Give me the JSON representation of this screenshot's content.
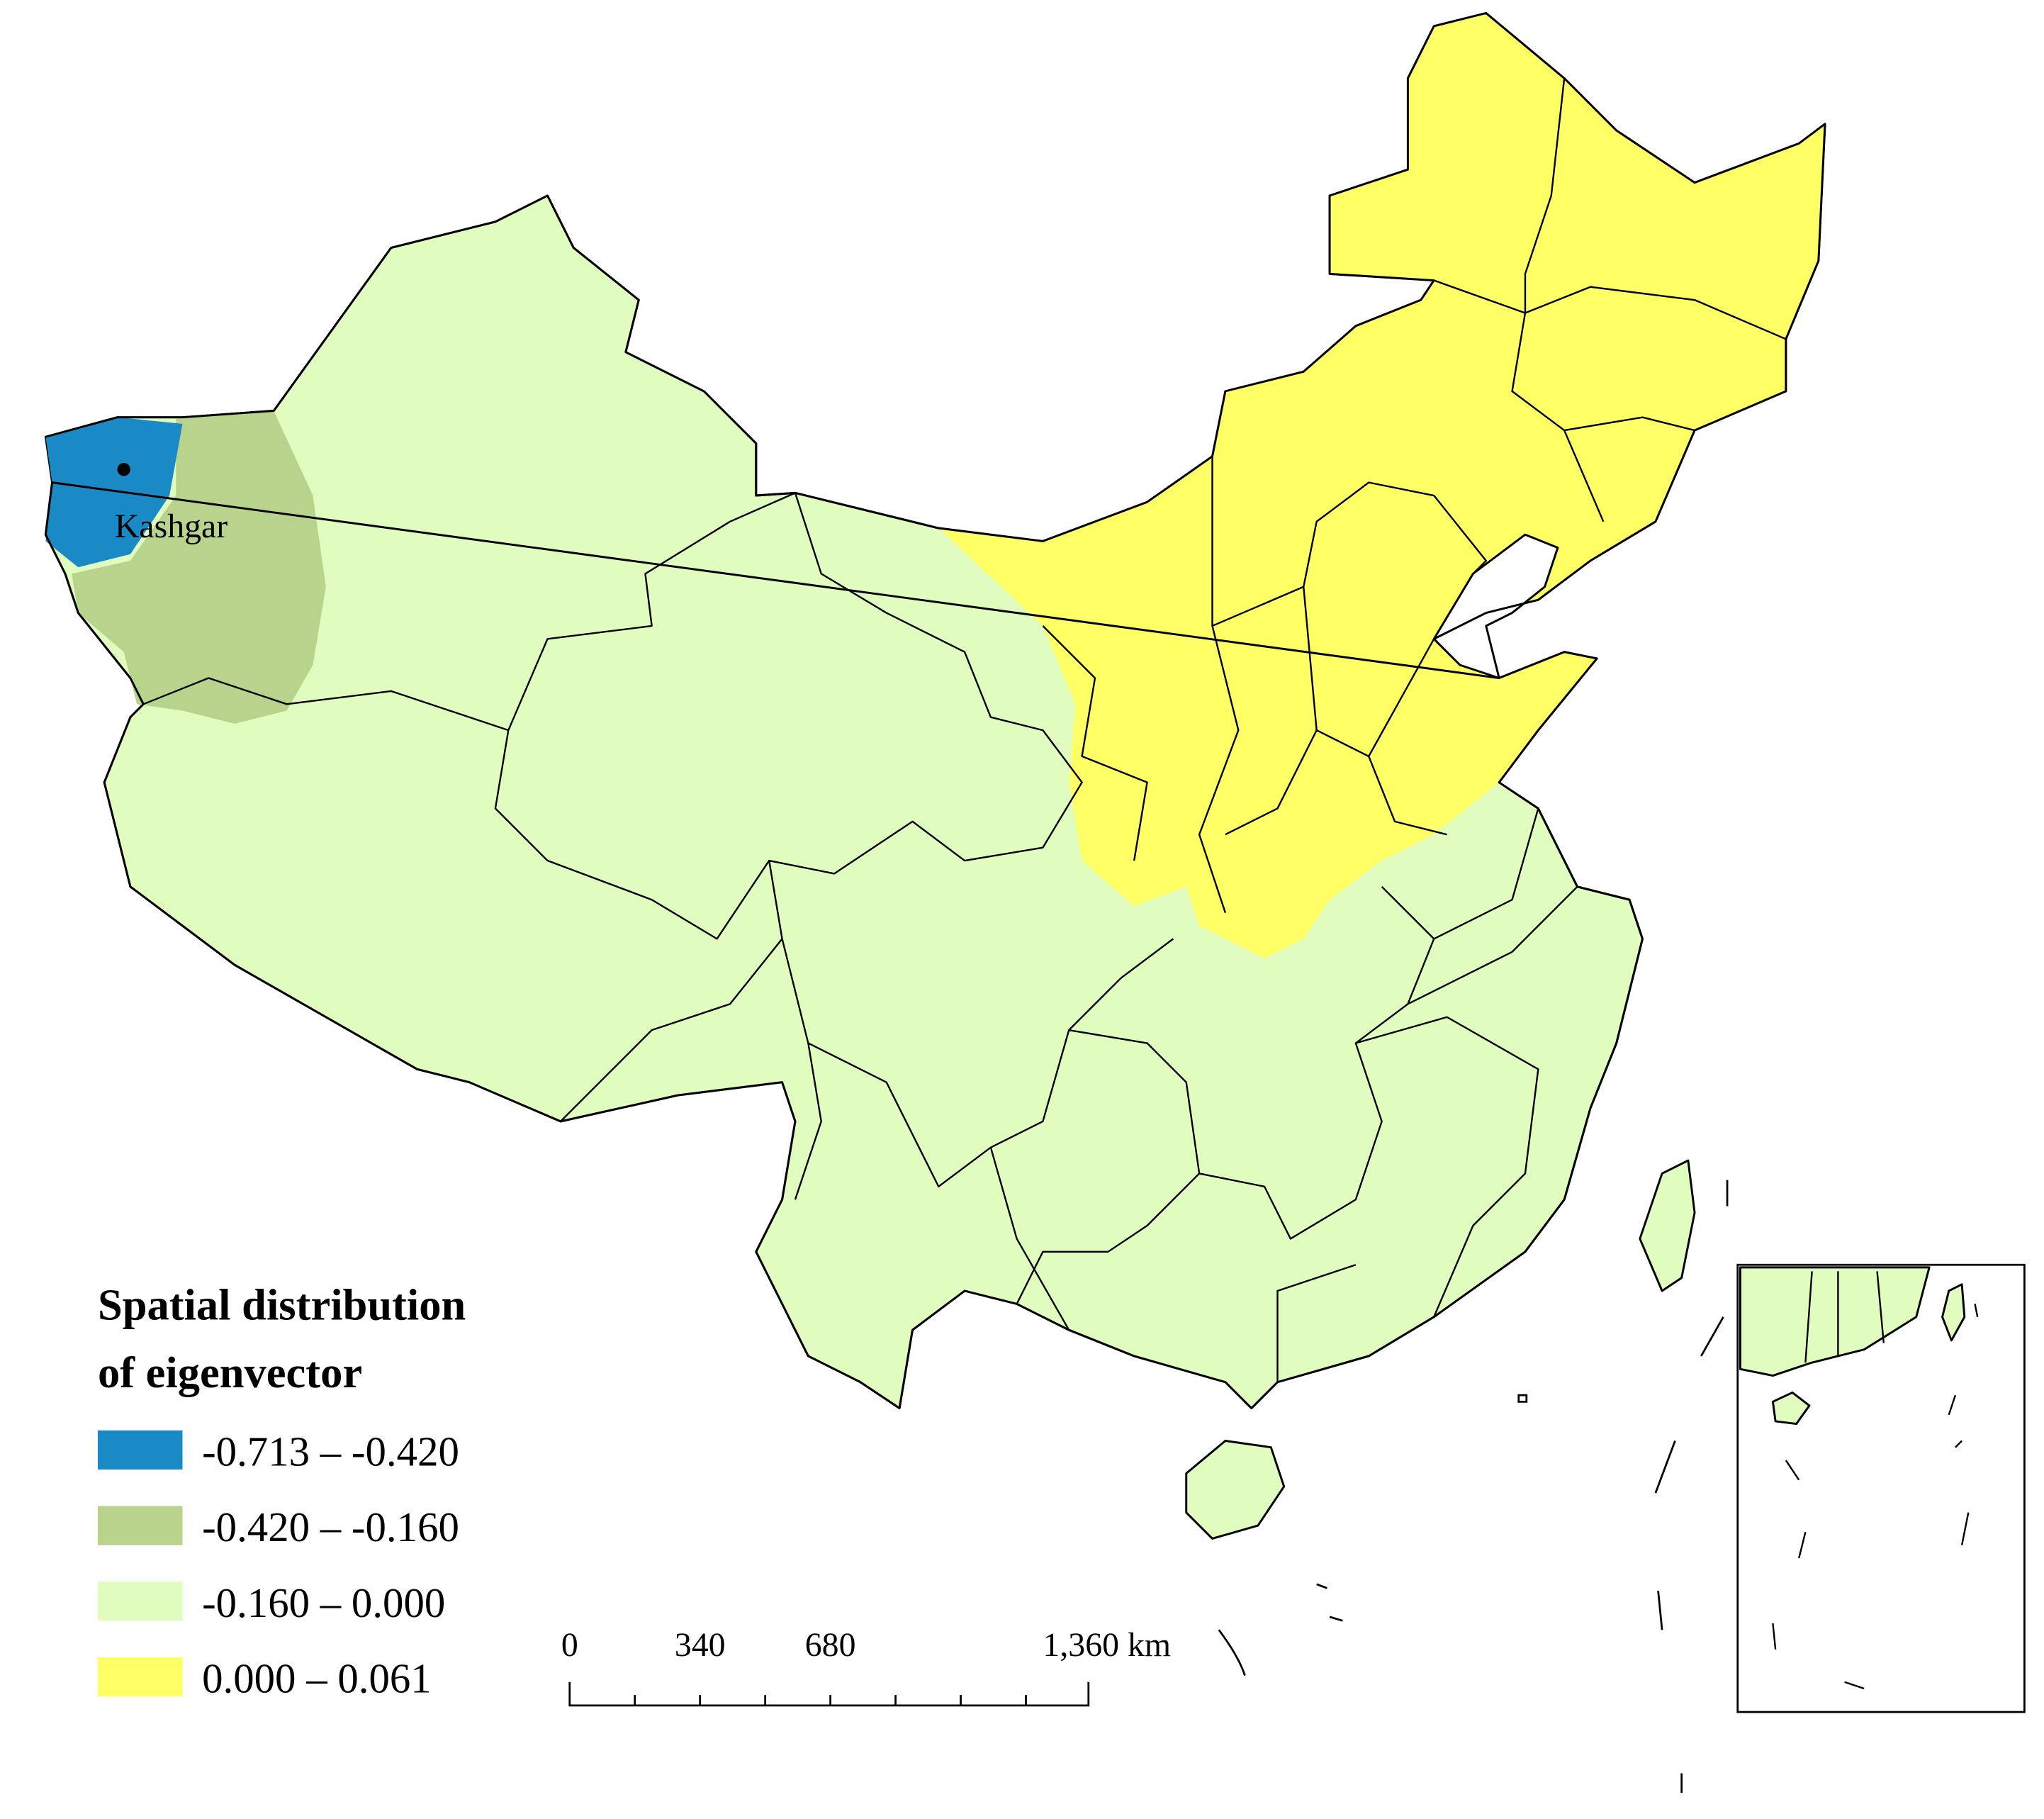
{
  "map": {
    "place_label": "Kashgar",
    "legend": {
      "title_lines": [
        "Spatial distribution",
        "of eigenvector"
      ],
      "items": [
        {
          "label": "-0.713 – -0.420",
          "color": "#1a8ac6"
        },
        {
          "label": "-0.420 – -0.160",
          "color": "#b8d48c"
        },
        {
          "label": "-0.160 – 0.000",
          "color": "#e0fdbf"
        },
        {
          "label": "0.000 – 0.061",
          "color": "#ffff66"
        }
      ]
    },
    "scale_bar": {
      "labels": [
        "0",
        "340",
        "680",
        "1,360 km"
      ]
    }
  }
}
